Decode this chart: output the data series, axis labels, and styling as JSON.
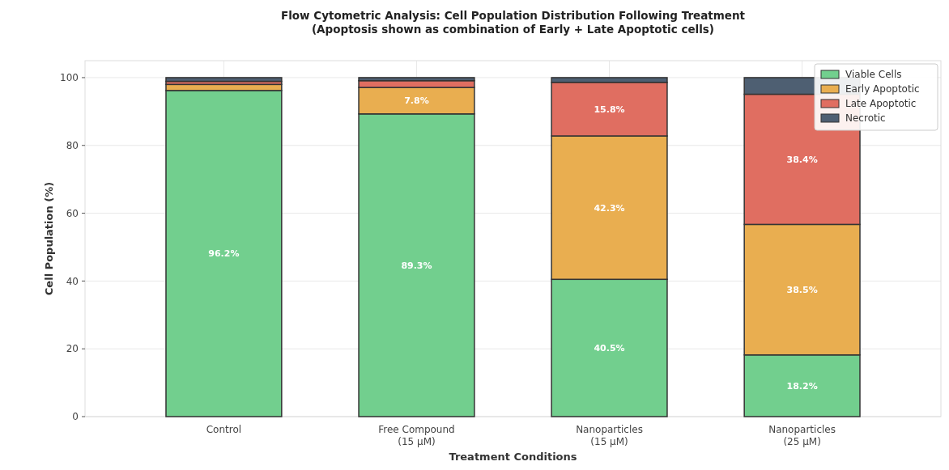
{
  "chart_data": {
    "type": "bar",
    "stacked": true,
    "title": "Flow Cytometric Analysis: Cell Population Distribution Following Treatment\n(Apoptosis shown as combination of Early + Late Apoptotic cells)",
    "xlabel": "Treatment Conditions",
    "ylabel": "Cell Population (%)",
    "categories": [
      "Control",
      "Free Compound\n(15 μM)",
      "Nanoparticles\n(15 μM)",
      "Nanoparticles\n(25 μM)"
    ],
    "series": [
      {
        "name": "Viable Cells",
        "color": "#72cf8e",
        "values": [
          96.2,
          89.3,
          40.5,
          18.2
        ],
        "value_labels": [
          "96.2%",
          "89.3%",
          "40.5%",
          "18.2%"
        ]
      },
      {
        "name": "Early Apoptotic",
        "color": "#e9ae50",
        "values": [
          1.8,
          7.8,
          42.3,
          38.5
        ],
        "value_labels": [
          null,
          "7.8%",
          "42.3%",
          "38.5%"
        ]
      },
      {
        "name": "Late Apoptotic",
        "color": "#e06e61",
        "values": [
          0.9,
          2.0,
          15.8,
          38.4
        ],
        "value_labels": [
          null,
          null,
          "15.8%",
          "38.4%"
        ]
      },
      {
        "name": "Necrotic",
        "color": "#4e5f72",
        "values": [
          1.1,
          0.9,
          1.4,
          4.9
        ],
        "value_labels": [
          null,
          null,
          null,
          null
        ]
      }
    ],
    "ylim": [
      0,
      105
    ],
    "yticks": [
      0,
      20,
      40,
      60,
      80,
      100
    ],
    "grid": true,
    "legend": "top right"
  }
}
